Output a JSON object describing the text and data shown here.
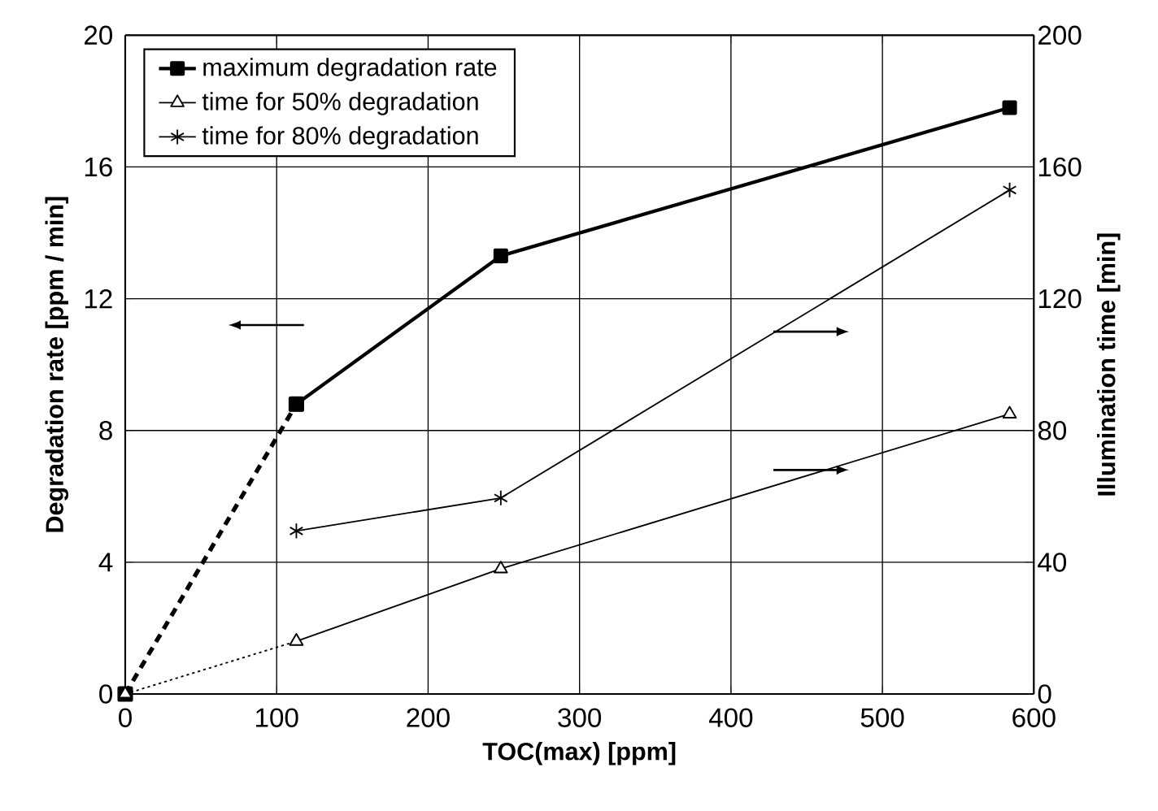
{
  "chart_data": {
    "type": "line",
    "xlabel": "TOC(max) [ppm]",
    "ylabel": "Degradation rate  [ppm / min]",
    "y2label": "Illumination time [min]",
    "xlim": [
      0,
      600
    ],
    "xticks": [
      0,
      100,
      200,
      300,
      400,
      500,
      600
    ],
    "ylim": [
      0,
      20
    ],
    "yticks": [
      0,
      4,
      8,
      12,
      16,
      20
    ],
    "y2lim": [
      0,
      200
    ],
    "y2ticks": [
      0,
      40,
      80,
      120,
      160,
      200
    ],
    "grid": true,
    "legend": "top left",
    "series": [
      {
        "name": "maximum degradation rate",
        "color": "#000000",
        "axis": "y",
        "marker": "square",
        "line_style": "solid",
        "x": [
          113,
          248,
          584
        ],
        "values": [
          8.8,
          13.3,
          17.8
        ]
      },
      {
        "name": "time for 50% degradation",
        "color": "#000000",
        "axis": "y2",
        "marker": "triangle",
        "line_style": "solid",
        "x": [
          113,
          248,
          584
        ],
        "values": [
          16,
          38,
          85
        ]
      },
      {
        "name": "time for 80% degradation",
        "color": "#000000",
        "axis": "y2",
        "marker": "cross",
        "line_style": "solid",
        "x": [
          113,
          248,
          584
        ],
        "values": [
          49.5,
          59.5,
          153
        ]
      },
      {
        "color": "#000000",
        "axis": "y",
        "marker": "square",
        "line_style": "dashed",
        "x": [
          0,
          113
        ],
        "values": [
          0,
          8.8
        ]
      },
      {
        "color": "#000000",
        "axis": "y2",
        "marker": "triangle",
        "line_style": "dotted",
        "x": [
          0,
          113
        ],
        "values": [
          0,
          16
        ]
      }
    ]
  }
}
